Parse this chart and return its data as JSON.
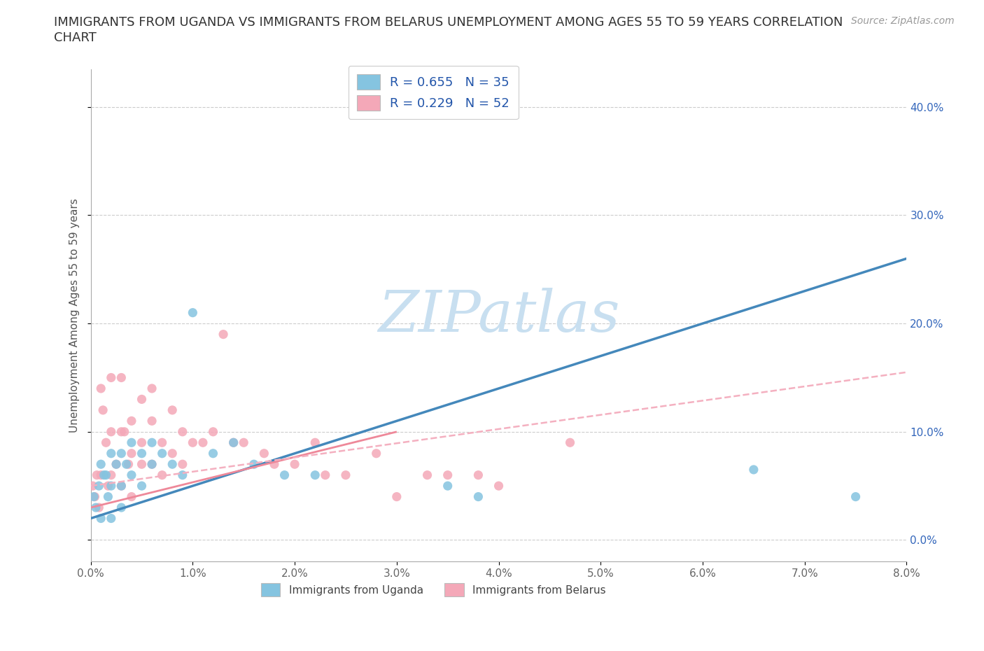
{
  "title_line1": "IMMIGRANTS FROM UGANDA VS IMMIGRANTS FROM BELARUS UNEMPLOYMENT AMONG AGES 55 TO 59 YEARS CORRELATION",
  "title_line2": "CHART",
  "source": "Source: ZipAtlas.com",
  "ylabel": "Unemployment Among Ages 55 to 59 years",
  "xlim": [
    0.0,
    0.08
  ],
  "ylim": [
    -0.02,
    0.435
  ],
  "xticks": [
    0.0,
    0.01,
    0.02,
    0.03,
    0.04,
    0.05,
    0.06,
    0.07,
    0.08
  ],
  "xticklabels": [
    "0.0%",
    "1.0%",
    "2.0%",
    "3.0%",
    "4.0%",
    "5.0%",
    "6.0%",
    "7.0%",
    "8.0%"
  ],
  "yticks": [
    0.0,
    0.1,
    0.2,
    0.3,
    0.4
  ],
  "yticklabels": [
    "0.0%",
    "10.0%",
    "20.0%",
    "30.0%",
    "40.0%"
  ],
  "grid_color": "#cccccc",
  "background_color": "#ffffff",
  "watermark": "ZIPatlas",
  "watermark_color": "#c8dff0",
  "uganda_color": "#85c4e0",
  "belarus_color": "#f4a8b8",
  "uganda_line_color": "#4488bb",
  "belarus_solid_color": "#ee8899",
  "belarus_dashed_color": "#f4b0c0",
  "uganda_R": "0.655",
  "uganda_N": "35",
  "belarus_R": "0.229",
  "belarus_N": "52",
  "legend_label_uganda": "Immigrants from Uganda",
  "legend_label_belarus": "Immigrants from Belarus",
  "legend_text_color": "#2255aa",
  "yaxis_tick_color": "#3366bb",
  "xaxis_tick_color": "#666666",
  "uganda_scatter_x": [
    0.0003,
    0.0005,
    0.0008,
    0.001,
    0.001,
    0.0013,
    0.0015,
    0.0017,
    0.002,
    0.002,
    0.002,
    0.0025,
    0.003,
    0.003,
    0.003,
    0.0035,
    0.004,
    0.004,
    0.005,
    0.005,
    0.006,
    0.006,
    0.007,
    0.008,
    0.009,
    0.01,
    0.012,
    0.014,
    0.016,
    0.019,
    0.022,
    0.035,
    0.038,
    0.065,
    0.075
  ],
  "uganda_scatter_y": [
    0.04,
    0.03,
    0.05,
    0.07,
    0.02,
    0.06,
    0.06,
    0.04,
    0.08,
    0.05,
    0.02,
    0.07,
    0.08,
    0.05,
    0.03,
    0.07,
    0.09,
    0.06,
    0.08,
    0.05,
    0.09,
    0.07,
    0.08,
    0.07,
    0.06,
    0.21,
    0.08,
    0.09,
    0.07,
    0.06,
    0.06,
    0.05,
    0.04,
    0.065,
    0.04
  ],
  "belarus_scatter_x": [
    0.0002,
    0.0004,
    0.0006,
    0.0008,
    0.001,
    0.001,
    0.0012,
    0.0015,
    0.0017,
    0.002,
    0.002,
    0.002,
    0.0025,
    0.003,
    0.003,
    0.003,
    0.0033,
    0.0037,
    0.004,
    0.004,
    0.004,
    0.005,
    0.005,
    0.005,
    0.006,
    0.006,
    0.006,
    0.007,
    0.007,
    0.008,
    0.008,
    0.009,
    0.009,
    0.01,
    0.011,
    0.012,
    0.013,
    0.014,
    0.015,
    0.017,
    0.018,
    0.02,
    0.022,
    0.023,
    0.025,
    0.028,
    0.03,
    0.033,
    0.035,
    0.038,
    0.04,
    0.047
  ],
  "belarus_scatter_y": [
    0.05,
    0.04,
    0.06,
    0.03,
    0.14,
    0.06,
    0.12,
    0.09,
    0.05,
    0.15,
    0.1,
    0.06,
    0.07,
    0.15,
    0.1,
    0.05,
    0.1,
    0.07,
    0.11,
    0.08,
    0.04,
    0.13,
    0.09,
    0.07,
    0.14,
    0.11,
    0.07,
    0.09,
    0.06,
    0.12,
    0.08,
    0.1,
    0.07,
    0.09,
    0.09,
    0.1,
    0.19,
    0.09,
    0.09,
    0.08,
    0.07,
    0.07,
    0.09,
    0.06,
    0.06,
    0.08,
    0.04,
    0.06,
    0.06,
    0.06,
    0.05,
    0.09
  ],
  "title_fontsize": 13,
  "axis_label_fontsize": 11,
  "tick_fontsize": 11,
  "source_fontsize": 10
}
